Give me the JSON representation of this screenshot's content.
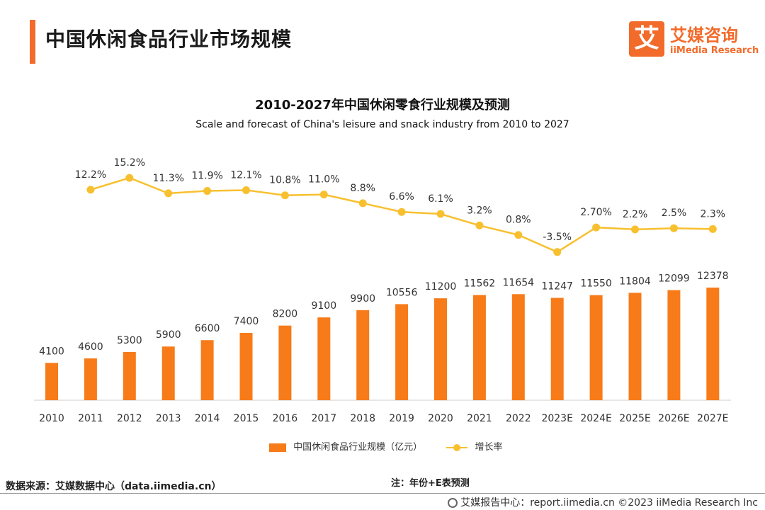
{
  "page": {
    "title": "中国休闲食品行业市场规模",
    "logo_mark": "艾",
    "logo_cn": "艾媒咨询",
    "logo_en": "iiMedia Research"
  },
  "chart_data": {
    "type": "bar",
    "title": "2010-2027年中国休闲零食行业规模及预测",
    "subtitle": "Scale and forecast of China's leisure and snack industry from 2010 to 2027",
    "categories": [
      "2010",
      "2011",
      "2012",
      "2013",
      "2014",
      "2015",
      "2016",
      "2017",
      "2018",
      "2019",
      "2020",
      "2021",
      "2022",
      "2023E",
      "2024E",
      "2025E",
      "2026E",
      "2027E"
    ],
    "series": [
      {
        "name": "中国休闲食品行业规模（亿元）",
        "type": "bar",
        "color": "#F77B19",
        "values": [
          4100,
          4600,
          5300,
          5900,
          6600,
          7400,
          8200,
          9100,
          9900,
          10556,
          11200,
          11562,
          11654,
          11247,
          11550,
          11804,
          12099,
          12378
        ],
        "labels": [
          "4100",
          "4600",
          "5300",
          "5900",
          "6600",
          "7400",
          "8200",
          "9100",
          "9900",
          "10556",
          "11200",
          "11562",
          "11654",
          "11247",
          "11550",
          "11804",
          "12099",
          "12378"
        ]
      },
      {
        "name": "增长率",
        "type": "line",
        "color": "#F8C02F",
        "values": [
          null,
          12.2,
          15.2,
          11.3,
          11.9,
          12.1,
          10.8,
          11.0,
          8.8,
          6.6,
          6.1,
          3.2,
          0.8,
          -3.5,
          2.7,
          2.2,
          2.5,
          2.3
        ],
        "labels": [
          "",
          "12.2%",
          "15.2%",
          "11.3%",
          "11.9%",
          "12.1%",
          "10.8%",
          "11.0%",
          "8.8%",
          "6.6%",
          "6.1%",
          "3.2%",
          "0.8%",
          "-3.5%",
          "2.70%",
          "2.2%",
          "2.5%",
          "2.3%"
        ]
      }
    ],
    "legend": "bottom"
  },
  "footer": {
    "source": "数据来源：艾媒数据中心（data.iimedia.cn）",
    "note": "注：年份+E表预测",
    "credit": "艾媒报告中心：report.iimedia.cn  ©2023  iiMedia Research  Inc"
  }
}
